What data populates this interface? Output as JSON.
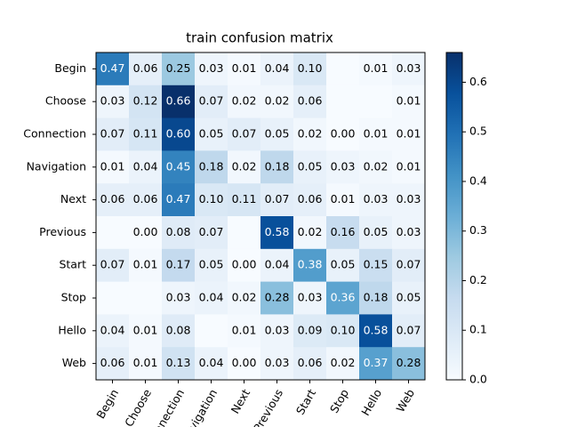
{
  "chart_data": {
    "type": "heatmap",
    "title": "train confusion matrix",
    "rows": [
      "Begin",
      "Choose",
      "Connection",
      "Navigation",
      "Next",
      "Previous",
      "Start",
      "Stop",
      "Hello",
      "Web"
    ],
    "columns": [
      "Begin",
      "Choose",
      "Connection",
      "Navigation",
      "Next",
      "Previous",
      "Start",
      "Stop",
      "Hello",
      "Web"
    ],
    "values": [
      [
        0.47,
        0.06,
        0.25,
        0.03,
        0.01,
        0.04,
        0.1,
        0,
        0.01,
        0.03
      ],
      [
        0.03,
        0.12,
        0.66,
        0.07,
        0.02,
        0.02,
        0.06,
        0,
        0,
        0.01
      ],
      [
        0.07,
        0.11,
        0.6,
        0.05,
        0.07,
        0.05,
        0.02,
        0,
        0.01,
        0.01
      ],
      [
        0.01,
        0.04,
        0.45,
        0.18,
        0.02,
        0.18,
        0.05,
        0.03,
        0.02,
        0.01
      ],
      [
        0.06,
        0.06,
        0.47,
        0.1,
        0.11,
        0.07,
        0.06,
        0.01,
        0.03,
        0.03
      ],
      [
        0,
        0,
        0.08,
        0.07,
        0,
        0.58,
        0.02,
        0.16,
        0.05,
        0.03
      ],
      [
        0.07,
        0.01,
        0.17,
        0.05,
        0,
        0.04,
        0.38,
        0.05,
        0.15,
        0.07
      ],
      [
        0,
        0,
        0.03,
        0.04,
        0.02,
        0.28,
        0.03,
        0.36,
        0.18,
        0.05
      ],
      [
        0.04,
        0.01,
        0.08,
        0,
        0.01,
        0.03,
        0.09,
        0.1,
        0.58,
        0.07
      ],
      [
        0.06,
        0.01,
        0.13,
        0.04,
        0,
        0.03,
        0.06,
        0.02,
        0.37,
        0.28
      ]
    ],
    "value_labels": [
      [
        "0.47",
        "0.06",
        "0.25",
        "0.03",
        "0.01",
        "0.04",
        "0.10",
        null,
        "0.01",
        "0.03"
      ],
      [
        "0.03",
        "0.12",
        "0.66",
        "0.07",
        "0.02",
        "0.02",
        "0.06",
        null,
        null,
        "0.01"
      ],
      [
        "0.07",
        "0.11",
        "0.60",
        "0.05",
        "0.07",
        "0.05",
        "0.02",
        "0.00",
        "0.01",
        "0.01"
      ],
      [
        "0.01",
        "0.04",
        "0.45",
        "0.18",
        "0.02",
        "0.18",
        "0.05",
        "0.03",
        "0.02",
        "0.01"
      ],
      [
        "0.06",
        "0.06",
        "0.47",
        "0.10",
        "0.11",
        "0.07",
        "0.06",
        "0.01",
        "0.03",
        "0.03"
      ],
      [
        null,
        "0.00",
        "0.08",
        "0.07",
        null,
        "0.58",
        "0.02",
        "0.16",
        "0.05",
        "0.03"
      ],
      [
        "0.07",
        "0.01",
        "0.17",
        "0.05",
        "0.00",
        "0.04",
        "0.38",
        "0.05",
        "0.15",
        "0.07"
      ],
      [
        null,
        null,
        "0.03",
        "0.04",
        "0.02",
        "0.28",
        "0.03",
        "0.36",
        "0.18",
        "0.05"
      ],
      [
        "0.04",
        "0.01",
        "0.08",
        null,
        "0.01",
        "0.03",
        "0.09",
        "0.10",
        "0.58",
        "0.07"
      ],
      [
        "0.06",
        "0.01",
        "0.13",
        "0.04",
        "0.00",
        "0.03",
        "0.06",
        "0.02",
        "0.37",
        "0.28"
      ]
    ],
    "colormap": [
      "#f7fbff",
      "#deebf7",
      "#c6dbef",
      "#9ecae1",
      "#6baed6",
      "#4292c6",
      "#2171b5",
      "#08519c",
      "#08306b"
    ],
    "clim": [
      0,
      0.66
    ],
    "colorbar_ticks": [
      {
        "value": 0,
        "label": "0.0"
      },
      {
        "value": 0.1,
        "label": "0.1"
      },
      {
        "value": 0.2,
        "label": "0.2"
      },
      {
        "value": 0.3,
        "label": "0.3"
      },
      {
        "value": 0.4,
        "label": "0.4"
      },
      {
        "value": 0.5,
        "label": "0.5"
      },
      {
        "value": 0.6,
        "label": "0.6"
      }
    ]
  }
}
